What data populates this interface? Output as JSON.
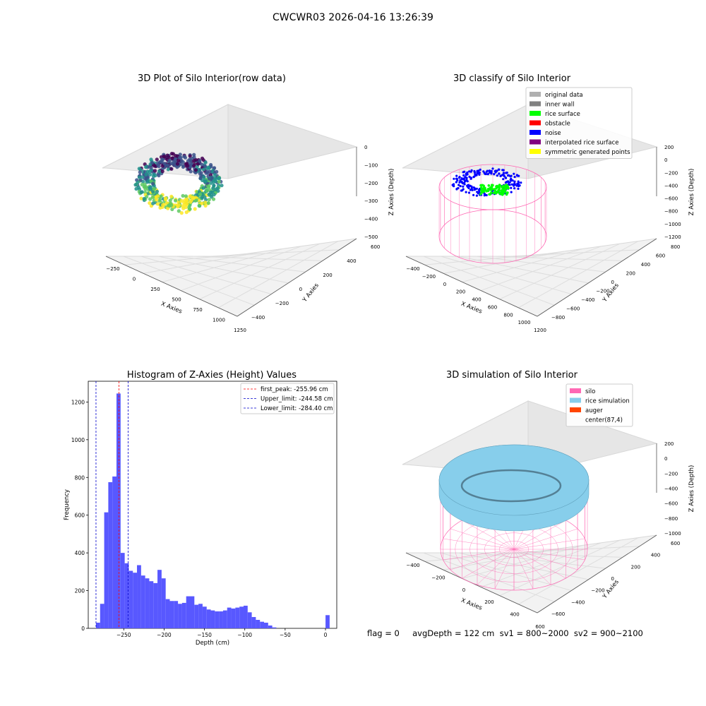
{
  "suptitle": "CWCWR03 2026-04-16 13:26:39",
  "footer": "flag = 0     avgDepth = 122 cm  sv1 = 800~2000  sv2 = 900~2100",
  "colors": {
    "hist_bar": "#5555ff",
    "first_peak": "#ff0000",
    "limit": "#0000cc",
    "silo": "#ff69b4",
    "rice": "#87ceeb",
    "auger": "#ff4500",
    "noise": "#0000ff",
    "rice_surface": "#00ff00",
    "pane": "#f2f2f2"
  },
  "chart_data": [
    {
      "type": "scatter3d",
      "title": "3D Plot of Silo Interior(row data)",
      "xlabel": "X Axies",
      "ylabel": "Y Axies",
      "zlabel": "Z Axies (Depth)",
      "x_ticks": [
        "−250",
        "0",
        "250",
        "500",
        "750",
        "1000",
        "1250"
      ],
      "y_ticks": [
        "−400",
        "−200",
        "0",
        "200",
        "400",
        "600"
      ],
      "z_ticks": [
        "−500",
        "−400",
        "−300",
        "−200",
        "−100",
        "0"
      ],
      "colormap": "viridis"
    },
    {
      "type": "scatter3d",
      "title": "3D classify of Silo Interior",
      "xlabel": "X Axies",
      "ylabel": "Y Axies",
      "zlabel": "Z Axies (Depth)",
      "x_ticks": [
        "−400",
        "−200",
        "0",
        "200",
        "400",
        "600",
        "800",
        "1000",
        "1200"
      ],
      "y_ticks": [
        "−800",
        "−600",
        "−400",
        "−200",
        "0",
        "200",
        "400",
        "600",
        "800"
      ],
      "z_ticks": [
        "−1200",
        "−1000",
        "−800",
        "−600",
        "−400",
        "−200",
        "0",
        "200"
      ],
      "legend_position": "top-right",
      "legend": [
        {
          "label": "original data",
          "color": "#b0b0b0"
        },
        {
          "label": "inner wall",
          "color": "#808080"
        },
        {
          "label": "rice surface",
          "color": "#00ff00"
        },
        {
          "label": "obstacle",
          "color": "#ff0000"
        },
        {
          "label": "noise",
          "color": "#0000ff"
        },
        {
          "label": "interpolated rice surface",
          "color": "#800080"
        },
        {
          "label": "symmetric generated points",
          "color": "#ffff00"
        }
      ]
    },
    {
      "type": "bar",
      "title": "Histogram of Z-Axies (Height) Values",
      "xlabel": "Depth (cm)",
      "ylabel": "Frequency",
      "xlim": [
        -294,
        14
      ],
      "ylim": [
        0,
        1310
      ],
      "x_ticks": [
        -250,
        -200,
        -150,
        -100,
        -50,
        0
      ],
      "x_tick_labels": [
        "−250",
        "−200",
        "−150",
        "−100",
        "−50",
        "0"
      ],
      "y_ticks": [
        0,
        200,
        400,
        600,
        800,
        1000,
        1200
      ],
      "bin_start": -284.4,
      "bin_width": 5.08,
      "values": [
        30,
        130,
        615,
        775,
        805,
        1245,
        400,
        345,
        305,
        295,
        335,
        280,
        265,
        250,
        240,
        310,
        265,
        155,
        145,
        145,
        130,
        135,
        170,
        170,
        125,
        130,
        115,
        100,
        95,
        90,
        90,
        95,
        110,
        105,
        110,
        115,
        120,
        85,
        60,
        45,
        35,
        30,
        15,
        5,
        0,
        0,
        0,
        0,
        0,
        0,
        0,
        0,
        0,
        0,
        0,
        0,
        70
      ],
      "lines": [
        {
          "label": "first_peak: -255.96 cm",
          "x": -255.96,
          "color": "#ff0000"
        },
        {
          "label": "Upper_limit: -244.58 cm",
          "x": -244.58,
          "color": "#0000cc"
        },
        {
          "label": "Lower_limit: -284.40 cm",
          "x": -284.4,
          "color": "#0000cc"
        }
      ],
      "legend_position": "top-right"
    },
    {
      "type": "surface3d",
      "title": "3D simulation of Silo Interior",
      "xlabel": "X Axies",
      "ylabel": "Y Axies",
      "zlabel": "Z Axies (Depth)",
      "x_ticks": [
        "−400",
        "−200",
        "0",
        "200",
        "400",
        "600"
      ],
      "y_ticks": [
        "−600",
        "−400",
        "−200",
        "0",
        "200",
        "400",
        "600"
      ],
      "z_ticks": [
        "−1000",
        "−800",
        "−600",
        "−400",
        "−200",
        "0",
        "200"
      ],
      "legend_position": "top-right",
      "legend": [
        {
          "label": "silo",
          "color": "#ff69b4"
        },
        {
          "label": "rice simulation",
          "color": "#87ceeb"
        },
        {
          "label": "auger",
          "color": "#ff4500"
        },
        {
          "label": "center(87,4)",
          "color": "none"
        }
      ]
    }
  ]
}
